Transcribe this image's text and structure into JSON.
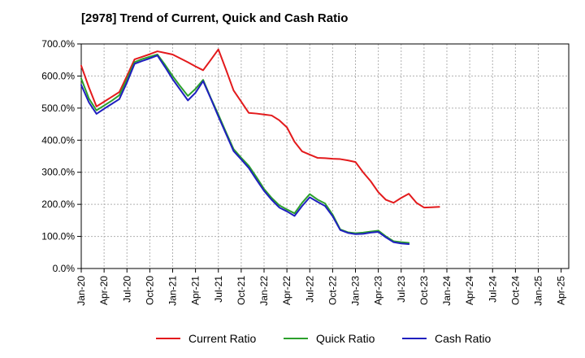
{
  "chart_data": {
    "type": "line",
    "title": "[2978]  Trend of Current, Quick and Cash Ratio",
    "xlabel": "",
    "ylabel": "",
    "ylim": [
      0,
      700
    ],
    "y_ticks": [
      "0.0%",
      "100.0%",
      "200.0%",
      "300.0%",
      "400.0%",
      "500.0%",
      "600.0%",
      "700.0%"
    ],
    "x_ticks": [
      "Jan-20",
      "Apr-20",
      "Jul-20",
      "Oct-20",
      "Jan-21",
      "Apr-21",
      "Jul-21",
      "Oct-21",
      "Jan-22",
      "Apr-22",
      "Jul-22",
      "Oct-22",
      "Jan-23",
      "Apr-23",
      "Jul-23",
      "Oct-23",
      "Jan-24",
      "Apr-24",
      "Jul-24",
      "Oct-24",
      "Jan-25",
      "Apr-25"
    ],
    "x_months": [
      0,
      1,
      2,
      3,
      4,
      5,
      6,
      7,
      8,
      9,
      10,
      11,
      12,
      13,
      14,
      15,
      16,
      17,
      18,
      19,
      20,
      21,
      22,
      23,
      24,
      25,
      26,
      27,
      28,
      29,
      30,
      31,
      32,
      33,
      34,
      35,
      36,
      37,
      38,
      39,
      40,
      41,
      42,
      43,
      44,
      45,
      46,
      47,
      48,
      49,
      50,
      51,
      52,
      53,
      54,
      55,
      56,
      57,
      58,
      59,
      60
    ],
    "grid": true,
    "legend_position": "bottom",
    "series": [
      {
        "name": "Current Ratio",
        "color": "#e31a1c",
        "values": [
          632,
          565,
          505,
          520,
          535,
          550,
          600,
          652,
          660,
          668,
          677,
          672,
          667,
          655,
          643,
          630,
          618,
          650,
          683,
          620,
          555,
          520,
          485,
          483,
          480,
          477,
          462,
          440,
          395,
          365,
          355,
          345,
          344,
          342,
          341,
          337,
          332,
          300,
          272,
          238,
          214,
          205,
          220,
          233,
          205,
          190,
          191,
          192
        ]
      },
      {
        "name": "Quick Ratio",
        "color": "#2ca02c",
        "values": [
          592,
          530,
          493,
          508,
          523,
          540,
          590,
          643,
          653,
          660,
          667,
          635,
          600,
          568,
          538,
          560,
          588,
          532,
          480,
          425,
          372,
          345,
          320,
          285,
          248,
          220,
          197,
          184,
          172,
          205,
          232,
          215,
          203,
          168,
          122,
          113,
          110,
          112,
          115,
          118,
          100,
          85,
          82,
          80
        ]
      },
      {
        "name": "Cash Ratio",
        "color": "#1f1fbf",
        "values": [
          572,
          518,
          482,
          498,
          513,
          528,
          580,
          638,
          647,
          655,
          664,
          628,
          590,
          557,
          524,
          548,
          584,
          530,
          474,
          420,
          366,
          340,
          313,
          277,
          242,
          214,
          190,
          178,
          164,
          195,
          222,
          208,
          195,
          163,
          120,
          111,
          107,
          108,
          112,
          114,
          97,
          82,
          78,
          76
        ]
      }
    ]
  }
}
